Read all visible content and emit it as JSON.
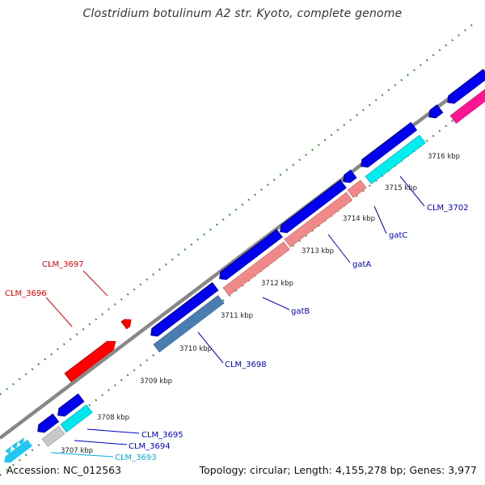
{
  "title": "Clostridium botulinum A2 str. Kyoto, complete genome",
  "footer": {
    "accession": "Accession: NC_012563",
    "summary": "Topology: circular; Length: 4,155,278 bp; Genes: 3,977"
  },
  "colors": {
    "backbone": "#888888",
    "tick": "#2e8b2e",
    "gene_blue": "#0000ee",
    "gene_red": "#ff0000",
    "gene_pink": "#f08080",
    "gene_cyan": "#00e5ee",
    "gene_steel": "#4a7eb3",
    "gene_gray": "#c0c0c0",
    "gene_magenta": "#ff1493",
    "label_blue": "#0000cc",
    "label_red": "#ee0000",
    "label_cyan": "#00b0e0"
  },
  "scale_labels": [
    "3707 kbp",
    "3708 kbp",
    "3709 kbp",
    "3710 kbp",
    "3711 kbp",
    "3712 kbp",
    "3713 kbp",
    "3714 kbp",
    "3715 kbp",
    "3716 kbp"
  ],
  "gene_labels": [
    {
      "text": "CLM_3697",
      "color": "red"
    },
    {
      "text": "CLM_3696",
      "color": "red"
    },
    {
      "text": "CLM_3702",
      "color": "blue"
    },
    {
      "text": "gatC",
      "color": "blue"
    },
    {
      "text": "gatA",
      "color": "blue"
    },
    {
      "text": "gatB",
      "color": "blue"
    },
    {
      "text": "CLM_3698",
      "color": "blue"
    },
    {
      "text": "CLM_3695",
      "color": "blue"
    },
    {
      "text": "CLM_3694",
      "color": "blue"
    },
    {
      "text": "CLM_3693",
      "color": "cyan"
    }
  ]
}
